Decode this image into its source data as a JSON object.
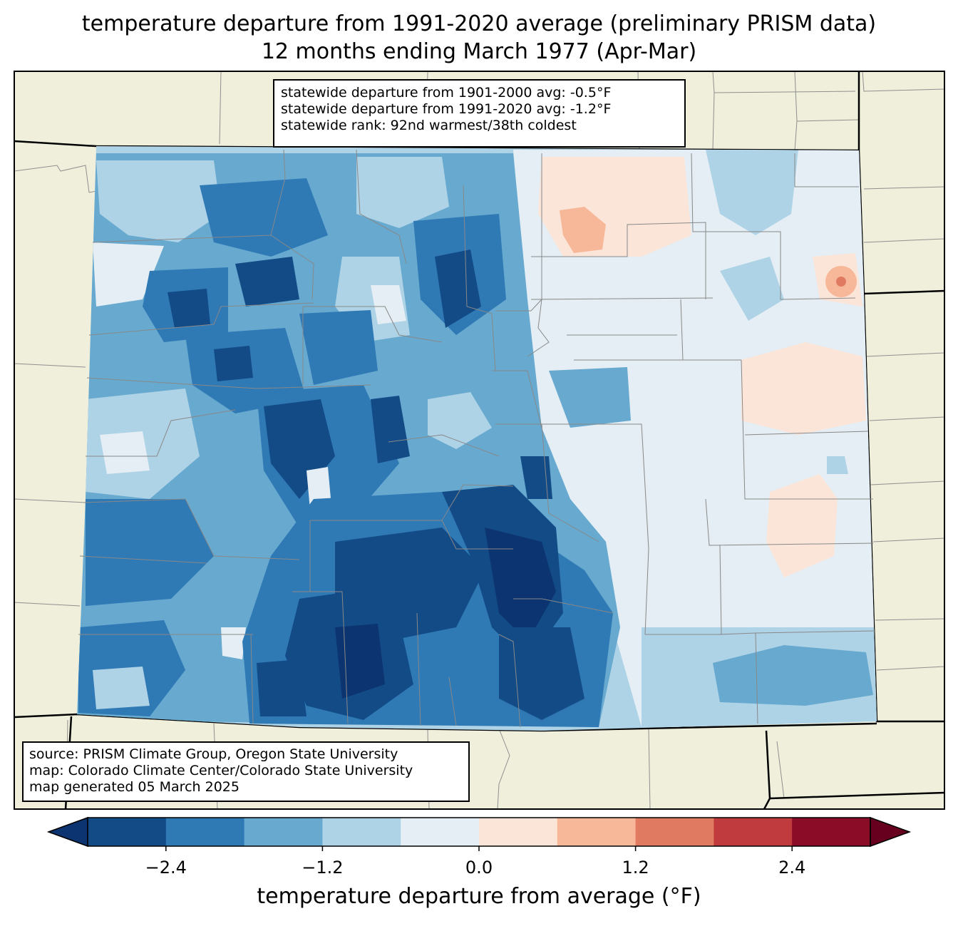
{
  "title": {
    "line1": "temperature departure from 1991-2020 average (preliminary PRISM data)",
    "line2": "12 months ending March 1977 (Apr-Mar)"
  },
  "stats": {
    "line1": "statewide departure from 1901-2000 avg: -0.5°F",
    "line2": "statewide departure from 1991-2020 avg: -1.2°F",
    "line3": "statewide rank: 92nd warmest/38th coldest"
  },
  "source": {
    "line1": "source: PRISM Climate Group, Oregon State University",
    "line2": "map: Colorado Climate Center/Colorado State University",
    "line3": "map generated 05 March 2025"
  },
  "colorbar": {
    "label": "temperature departure from average (°F)",
    "ticks": [
      "−2.4",
      "−1.2",
      "0.0",
      "1.2",
      "2.4"
    ],
    "levels": [
      -3.0,
      -2.4,
      -1.8,
      -1.2,
      -0.6,
      0.0,
      0.6,
      1.2,
      1.8,
      2.4,
      3.0
    ],
    "colors": [
      "#0b3470",
      "#134b87",
      "#2f79b5",
      "#67a9cf",
      "#afd3e6",
      "#e4eef4",
      "#fbe5d8",
      "#f7b799",
      "#e07b62",
      "#c03b3d",
      "#8a0c26",
      "#67001f"
    ]
  },
  "colors": {
    "land": "#efefdc",
    "county_lines": "#888888",
    "state_lines": "#000000"
  }
}
